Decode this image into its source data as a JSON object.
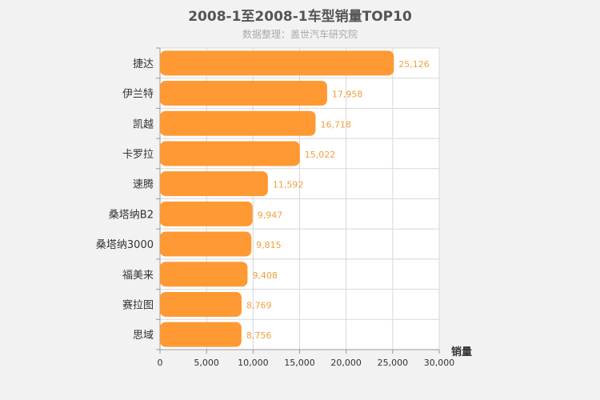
{
  "title": "2008-1至2008-1车型销量TOP10",
  "subtitle": "数据整理：盖世汽车研究院",
  "colors": {
    "bar": "#ff9933",
    "data_label": "#f0a040",
    "grid": "#d8d8d8",
    "axis": "#999999"
  },
  "chart_data": {
    "type": "bar",
    "orientation": "horizontal",
    "categories": [
      "捷达",
      "伊兰特",
      "凯越",
      "卡罗拉",
      "速腾",
      "桑塔纳B2",
      "桑塔纳3000",
      "福美来",
      "赛拉图",
      "思域"
    ],
    "values": [
      25126,
      17958,
      16718,
      15022,
      11592,
      9947,
      9815,
      9408,
      8769,
      8756
    ],
    "value_labels": [
      "25,126",
      "17,958",
      "16,718",
      "15,022",
      "11,592",
      "9,947",
      "9,815",
      "9,408",
      "8,769",
      "8,756"
    ],
    "xlabel": "销量",
    "ylabel": "",
    "xlim": [
      0,
      30000
    ],
    "xticks": [
      0,
      5000,
      10000,
      15000,
      20000,
      25000,
      30000
    ],
    "xtick_labels": [
      "0",
      "5,000",
      "10,000",
      "15,000",
      "20,000",
      "25,000",
      "30,000"
    ],
    "grid": true,
    "legend": "none"
  }
}
